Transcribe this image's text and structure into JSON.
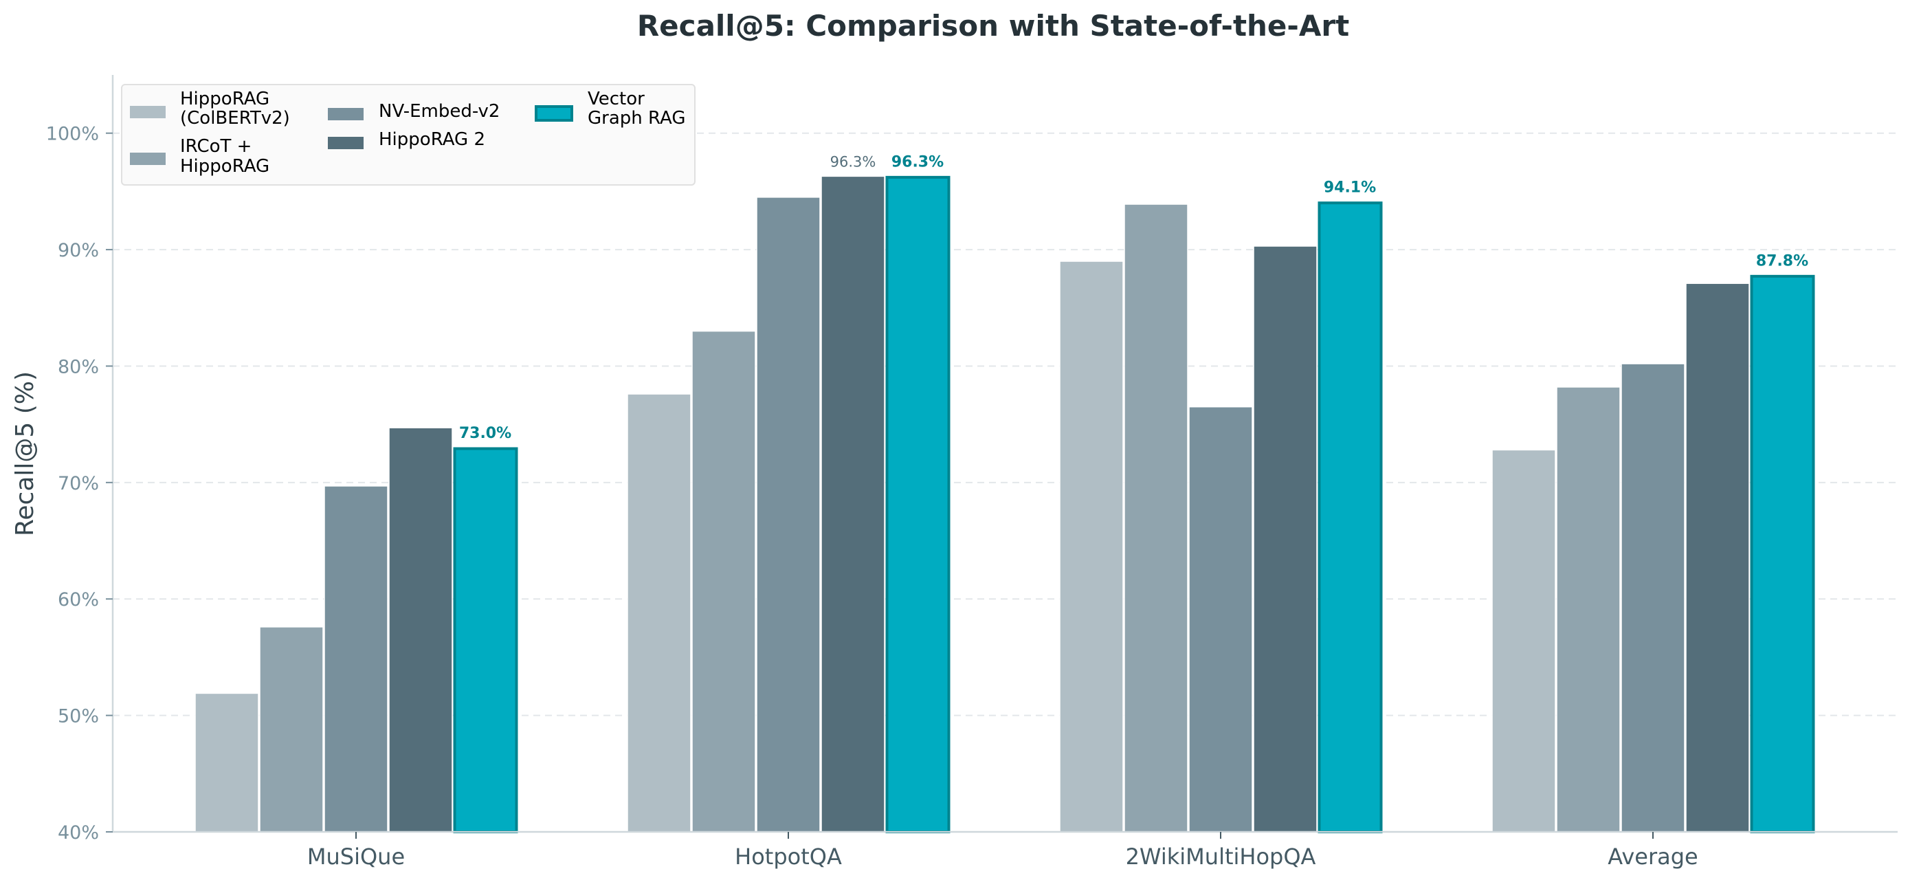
{
  "chart_data": {
    "type": "bar",
    "title": "Recall@5: Comparison with State-of-the-Art",
    "xlabel": "",
    "ylabel": "Recall@5 (%)",
    "ylim": [
      40,
      105
    ],
    "yticks": [
      40,
      50,
      60,
      70,
      80,
      90,
      100
    ],
    "ytick_labels": [
      "40%",
      "50%",
      "60%",
      "70%",
      "80%",
      "90%",
      "100%"
    ],
    "grid": {
      "y": true,
      "style": "dashed"
    },
    "legend_position": "upper left",
    "categories": [
      "MuSiQue",
      "HotpotQA",
      "2WikiMultiHopQA",
      "Average"
    ],
    "series": [
      {
        "name": "HippoRAG (ColBERTv2)",
        "legend_lines": [
          "HippoRAG",
          "(ColBERTv2)"
        ],
        "color": "#B0BEC5",
        "values": [
          51.9,
          77.6,
          89.0,
          72.8
        ]
      },
      {
        "name": "IRCoT + HippoRAG",
        "legend_lines": [
          "IRCoT +",
          "HippoRAG"
        ],
        "color": "#90A4AE",
        "values": [
          57.6,
          83.0,
          93.9,
          78.2
        ]
      },
      {
        "name": "NV-Embed-v2",
        "legend_lines": [
          "NV-Embed-v2"
        ],
        "color": "#78909C",
        "values": [
          69.7,
          94.5,
          76.5,
          80.2
        ]
      },
      {
        "name": "HippoRAG 2",
        "legend_lines": [
          "HippoRAG 2"
        ],
        "color": "#546E7A",
        "values": [
          74.7,
          96.3,
          90.3,
          87.1
        ]
      },
      {
        "name": "Vector Graph RAG",
        "legend_lines": [
          "Vector",
          "Graph RAG"
        ],
        "color": "#00ACC1",
        "edge_color": "#00838F",
        "highlight": true,
        "values": [
          73.0,
          96.3,
          94.1,
          87.8
        ]
      }
    ],
    "annotations": [
      {
        "series": "Vector Graph RAG",
        "category": "MuSiQue",
        "text": "73.0%",
        "style": "bold"
      },
      {
        "series": "HippoRAG 2",
        "category": "HotpotQA",
        "text": "96.3%",
        "style": "normal"
      },
      {
        "series": "Vector Graph RAG",
        "category": "HotpotQA",
        "text": "96.3%",
        "style": "bold"
      },
      {
        "series": "Vector Graph RAG",
        "category": "2WikiMultiHopQA",
        "text": "94.1%",
        "style": "bold"
      },
      {
        "series": "Vector Graph RAG",
        "category": "Average",
        "text": "87.8%",
        "style": "bold"
      }
    ]
  }
}
